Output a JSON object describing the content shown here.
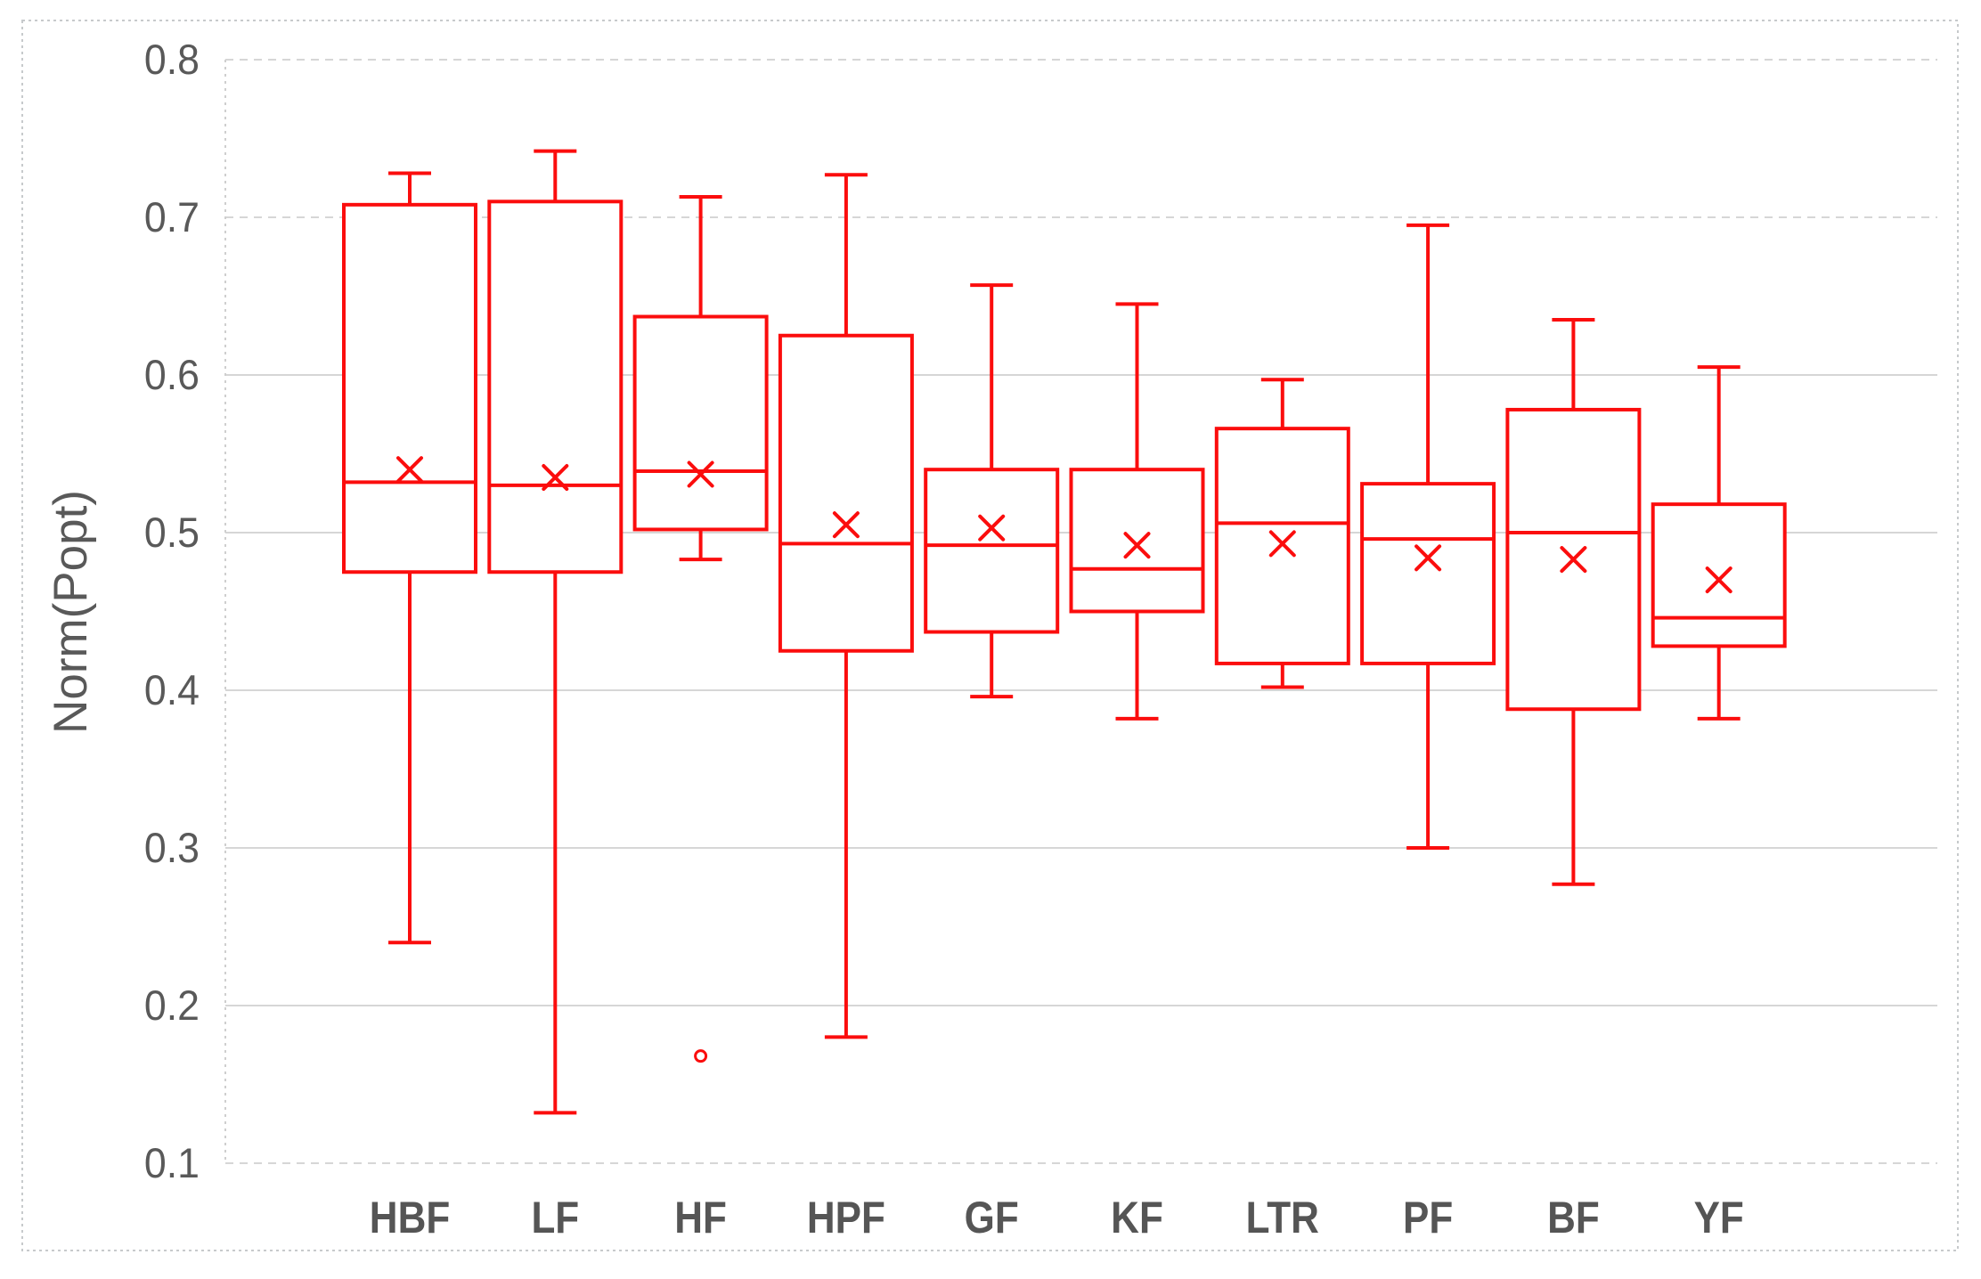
{
  "figure": {
    "background": "#ffffff",
    "border_color": "#c7cacc",
    "plot_colors": {
      "box_stroke": "#fb0d0d",
      "box_fill": "#ffffff",
      "gridline": "#d6d6d6",
      "axis_line": "#cfcfcf",
      "text": "#595959"
    }
  },
  "chart_data": {
    "type": "boxplot",
    "title": "",
    "xlabel": "",
    "ylabel": "Norm(Popt)",
    "ylim": [
      0.1,
      0.8
    ],
    "ytick_interval": 0.1,
    "yticks": [
      "0.8",
      "0.7",
      "0.6",
      "0.5",
      "0.4",
      "0.3",
      "0.2",
      "0.1"
    ],
    "grid": true,
    "legend": "none",
    "categories": [
      "HBF",
      "LF",
      "HF",
      "HPF",
      "GF",
      "KF",
      "LTR",
      "PF",
      "BF",
      "YF"
    ],
    "series": [
      {
        "category": "HBF",
        "whisker_low": 0.24,
        "q1": 0.475,
        "median": 0.532,
        "q3": 0.708,
        "whisker_high": 0.728,
        "mean": 0.54,
        "outliers": []
      },
      {
        "category": "LF",
        "whisker_low": 0.132,
        "q1": 0.475,
        "median": 0.53,
        "q3": 0.71,
        "whisker_high": 0.742,
        "mean": 0.535,
        "outliers": []
      },
      {
        "category": "HF",
        "whisker_low": 0.483,
        "q1": 0.502,
        "median": 0.539,
        "q3": 0.637,
        "whisker_high": 0.713,
        "mean": 0.537,
        "outliers": [
          0.168
        ]
      },
      {
        "category": "HPF",
        "whisker_low": 0.18,
        "q1": 0.425,
        "median": 0.493,
        "q3": 0.625,
        "whisker_high": 0.727,
        "mean": 0.505,
        "outliers": []
      },
      {
        "category": "GF",
        "whisker_low": 0.396,
        "q1": 0.437,
        "median": 0.492,
        "q3": 0.54,
        "whisker_high": 0.657,
        "mean": 0.503,
        "outliers": []
      },
      {
        "category": "KF",
        "whisker_low": 0.382,
        "q1": 0.45,
        "median": 0.477,
        "q3": 0.54,
        "whisker_high": 0.645,
        "mean": 0.492,
        "outliers": []
      },
      {
        "category": "LTR",
        "whisker_low": 0.402,
        "q1": 0.417,
        "median": 0.506,
        "q3": 0.566,
        "whisker_high": 0.597,
        "mean": 0.493,
        "outliers": []
      },
      {
        "category": "PF",
        "whisker_low": 0.3,
        "q1": 0.417,
        "median": 0.496,
        "q3": 0.531,
        "whisker_high": 0.695,
        "mean": 0.484,
        "outliers": []
      },
      {
        "category": "BF",
        "whisker_low": 0.277,
        "q1": 0.388,
        "median": 0.5,
        "q3": 0.578,
        "whisker_high": 0.635,
        "mean": 0.483,
        "outliers": []
      },
      {
        "category": "YF",
        "whisker_low": 0.382,
        "q1": 0.428,
        "median": 0.446,
        "q3": 0.518,
        "whisker_high": 0.605,
        "mean": 0.47,
        "outliers": []
      }
    ],
    "marker_legend": {
      "mean_marker": "x",
      "outlier_marker": "circle"
    }
  }
}
